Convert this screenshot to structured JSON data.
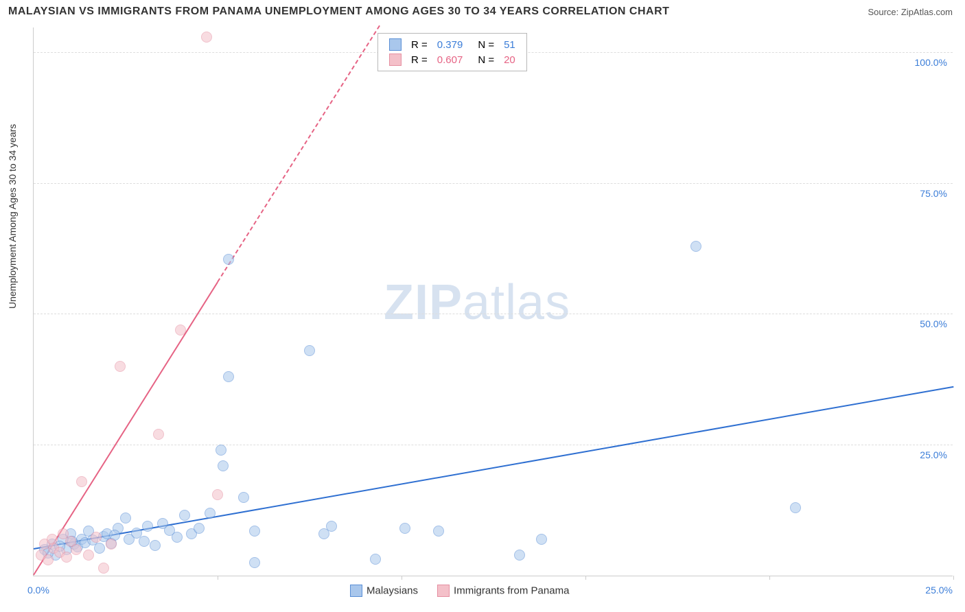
{
  "title": "MALAYSIAN VS IMMIGRANTS FROM PANAMA UNEMPLOYMENT AMONG AGES 30 TO 34 YEARS CORRELATION CHART",
  "source": "Source: ZipAtlas.com",
  "yaxis_label": "Unemployment Among Ages 30 to 34 years",
  "watermark_a": "ZIP",
  "watermark_b": "atlas",
  "chart": {
    "type": "scatter",
    "xlim": [
      0,
      25
    ],
    "ylim": [
      0,
      105
    ],
    "x_ticks": [
      5,
      10,
      15,
      20,
      25
    ],
    "y_gridlines": [
      25,
      50,
      75,
      100
    ],
    "y_labels": [
      {
        "v": 25,
        "t": "25.0%"
      },
      {
        "v": 50,
        "t": "50.0%"
      },
      {
        "v": 75,
        "t": "75.0%"
      },
      {
        "v": 100,
        "t": "100.0%"
      }
    ],
    "origin_label": "0.0%",
    "x_max_label": "25.0%",
    "background_color": "#ffffff",
    "grid_color": "#dddddd",
    "axis_color": "#cccccc",
    "label_color": "#3b7dd8",
    "marker_radius": 8,
    "marker_opacity": 0.55,
    "series": [
      {
        "name": "Malaysians",
        "color_fill": "#a9c7ec",
        "color_stroke": "#5a8fd6",
        "trend_color": "#2e6fd1",
        "R": "0.379",
        "N": "51",
        "trend": {
          "x1": 0,
          "y1": 5,
          "x2": 25,
          "y2": 36
        },
        "points": [
          [
            0.3,
            5
          ],
          [
            0.5,
            6
          ],
          [
            0.6,
            4
          ],
          [
            0.8,
            7
          ],
          [
            0.9,
            5
          ],
          [
            1.0,
            8
          ],
          [
            1.1,
            6
          ],
          [
            1.2,
            5.5
          ],
          [
            1.3,
            7
          ],
          [
            1.4,
            6.3
          ],
          [
            1.5,
            8.5
          ],
          [
            1.6,
            6.8
          ],
          [
            1.8,
            5.2
          ],
          [
            1.9,
            7.5
          ],
          [
            2.0,
            8
          ],
          [
            2.1,
            6.2
          ],
          [
            2.3,
            9
          ],
          [
            2.5,
            11
          ],
          [
            2.6,
            7
          ],
          [
            2.8,
            8.2
          ],
          [
            3.0,
            6.5
          ],
          [
            3.1,
            9.5
          ],
          [
            3.3,
            5.8
          ],
          [
            3.5,
            10
          ],
          [
            3.7,
            8.6
          ],
          [
            3.9,
            7.3
          ],
          [
            4.1,
            11.5
          ],
          [
            4.3,
            8
          ],
          [
            4.5,
            9
          ],
          [
            4.8,
            12
          ],
          [
            5.1,
            24
          ],
          [
            5.15,
            21
          ],
          [
            5.3,
            38
          ],
          [
            5.3,
            60.5
          ],
          [
            5.7,
            15
          ],
          [
            6.0,
            2.5
          ],
          [
            6.0,
            8.5
          ],
          [
            7.5,
            43
          ],
          [
            7.9,
            8
          ],
          [
            8.1,
            9.5
          ],
          [
            9.3,
            3.2
          ],
          [
            10.1,
            9
          ],
          [
            11.0,
            8.5
          ],
          [
            13.2,
            4
          ],
          [
            13.8,
            7
          ],
          [
            18.0,
            63
          ],
          [
            20.7,
            13
          ],
          [
            0.4,
            4.3
          ],
          [
            0.7,
            5.7
          ],
          [
            1.05,
            6.6
          ],
          [
            2.2,
            7.8
          ]
        ]
      },
      {
        "name": "Immigrants from Panama",
        "color_fill": "#f4c0c9",
        "color_stroke": "#e58fa1",
        "trend_color": "#e66384",
        "R": "0.607",
        "N": "20",
        "trend": {
          "x1": 0,
          "y1": 0,
          "x2": 5.0,
          "y2": 56
        },
        "trend_dash": {
          "x1": 5.0,
          "y1": 56,
          "x2": 9.4,
          "y2": 105
        },
        "points": [
          [
            0.2,
            4
          ],
          [
            0.3,
            6
          ],
          [
            0.4,
            3
          ],
          [
            0.5,
            7
          ],
          [
            0.55,
            5.2
          ],
          [
            0.7,
            4.5
          ],
          [
            0.8,
            8
          ],
          [
            0.9,
            3.5
          ],
          [
            1.0,
            6.6
          ],
          [
            1.15,
            5
          ],
          [
            1.3,
            18
          ],
          [
            1.5,
            4
          ],
          [
            1.7,
            7.3
          ],
          [
            1.9,
            1.5
          ],
          [
            2.1,
            6
          ],
          [
            2.35,
            40
          ],
          [
            3.4,
            27
          ],
          [
            4.0,
            47
          ],
          [
            4.7,
            103
          ],
          [
            5.0,
            15.5
          ]
        ]
      }
    ]
  },
  "legend_top": {
    "rows": [
      {
        "swatch_fill": "#a9c7ec",
        "swatch_stroke": "#5a8fd6",
        "r_label": "R =",
        "r_val": "0.379",
        "n_label": "N =",
        "n_val": "51",
        "val_color": "#3b7dd8"
      },
      {
        "swatch_fill": "#f4c0c9",
        "swatch_stroke": "#e58fa1",
        "r_label": "R =",
        "r_val": "0.607",
        "n_label": "N =",
        "n_val": "20",
        "val_color": "#e66384"
      }
    ]
  },
  "legend_bottom": [
    {
      "swatch_fill": "#a9c7ec",
      "swatch_stroke": "#5a8fd6",
      "label": "Malaysians"
    },
    {
      "swatch_fill": "#f4c0c9",
      "swatch_stroke": "#e58fa1",
      "label": "Immigrants from Panama"
    }
  ]
}
